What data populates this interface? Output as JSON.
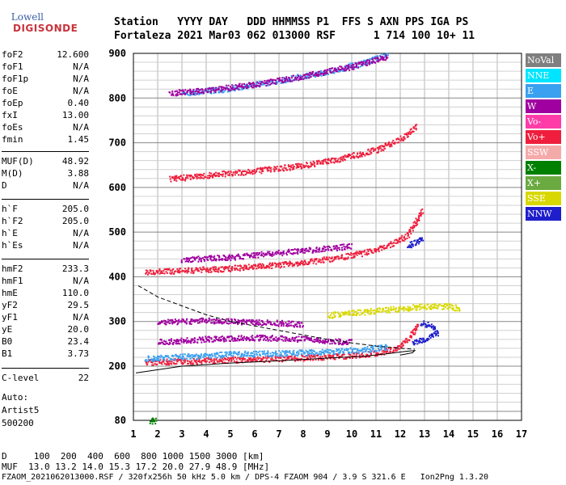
{
  "logo": {
    "line1": "Lowell",
    "line2": "DIGISONDE"
  },
  "header": {
    "line1": "Station   YYYY DAY   DDD HHMMSS P1  FFS S AXN PPS IGA PS",
    "line2": "Fortaleza 2021 Mar03 062 013000 RSF      1 714 100 10+ 11"
  },
  "params": [
    {
      "label": "foF2",
      "value": "12.600"
    },
    {
      "label": "foF1",
      "value": "N/A"
    },
    {
      "label": "foF1p",
      "value": "N/A"
    },
    {
      "label": "foE",
      "value": "N/A"
    },
    {
      "label": "foEp",
      "value": "0.40"
    },
    {
      "label": "fxI",
      "value": "13.00"
    },
    {
      "label": "foEs",
      "value": "N/A"
    },
    {
      "label": "fmin",
      "value": "1.45"
    },
    {
      "label": "MUF(D)",
      "value": "48.92"
    },
    {
      "label": "M(D)",
      "value": "3.88"
    },
    {
      "label": "D",
      "value": "N/A"
    },
    {
      "label": "h`F",
      "value": "205.0"
    },
    {
      "label": "h`F2",
      "value": "205.0"
    },
    {
      "label": "h`E",
      "value": "N/A"
    },
    {
      "label": "h`Es",
      "value": "N/A"
    },
    {
      "label": "hmF2",
      "value": "233.3"
    },
    {
      "label": "hmF1",
      "value": "N/A"
    },
    {
      "label": "hmE",
      "value": "110.0"
    },
    {
      "label": "yF2",
      "value": "29.5"
    },
    {
      "label": "yF1",
      "value": "N/A"
    },
    {
      "label": "yE",
      "value": "20.0"
    },
    {
      "label": "B0",
      "value": "23.4"
    },
    {
      "label": "B1",
      "value": "3.73"
    },
    {
      "label": "C-level",
      "value": "22"
    }
  ],
  "auto": {
    "line1": "Auto:",
    "line2": "Artist5",
    "line3": "500200"
  },
  "legend": [
    {
      "label": "NoVal",
      "color": "#7f7f7f"
    },
    {
      "label": "NNE",
      "color": "#00e5ff"
    },
    {
      "label": "E",
      "color": "#3aa0f0"
    },
    {
      "label": "W",
      "color": "#a000a0"
    },
    {
      "label": "Vo-",
      "color": "#ff3ca8"
    },
    {
      "label": "Vo+",
      "color": "#ee1e3c"
    },
    {
      "label": "SSW",
      "color": "#f5aaaa"
    },
    {
      "label": "X-",
      "color": "#008000"
    },
    {
      "label": "X+",
      "color": "#6aaa40"
    },
    {
      "label": "SSE",
      "color": "#d8d800"
    },
    {
      "label": "NNW",
      "color": "#1e1ecc"
    }
  ],
  "footer": {
    "line1": "D     100  200  400  600  800 1000 1500 3000 [km]",
    "line2": "MUF  13.0 13.2 14.0 15.3 17.2 20.0 27.9 48.9 [MHz]",
    "line3": "FZAOM_2021062013000.RSF / 320fx256h 50 kHz 5.0 km / DPS-4 FZAOM 904 / 3.9 S 321.6 E   Ion2Png 1.3.20"
  },
  "chart_data": {
    "type": "scatter",
    "xlim": [
      1,
      17
    ],
    "ylim": [
      80,
      900
    ],
    "xticks": [
      1,
      2,
      3,
      4,
      5,
      6,
      7,
      8,
      9,
      10,
      11,
      12,
      13,
      14,
      15,
      16,
      17
    ],
    "yticks": [
      80,
      200,
      300,
      400,
      500,
      600,
      700,
      800,
      900
    ],
    "grid": true,
    "traces": [
      {
        "color": "#ee1e3c",
        "points": [
          [
            1.5,
            210
          ],
          [
            3,
            212
          ],
          [
            5,
            215
          ],
          [
            7,
            218
          ],
          [
            9,
            222
          ],
          [
            10,
            225
          ],
          [
            11,
            230
          ],
          [
            11.8,
            240
          ],
          [
            12.2,
            255
          ],
          [
            12.5,
            275
          ],
          [
            12.7,
            295
          ]
        ]
      },
      {
        "color": "#3aa0f0",
        "points": [
          [
            1.5,
            218
          ],
          [
            3,
            222
          ],
          [
            5,
            228
          ],
          [
            7,
            230
          ],
          [
            9,
            233
          ],
          [
            10.5,
            238
          ],
          [
            11.5,
            245
          ]
        ]
      },
      {
        "color": "#a000a0",
        "points": [
          [
            2,
            255
          ],
          [
            4,
            262
          ],
          [
            6,
            265
          ],
          [
            8,
            262
          ],
          [
            9,
            258
          ],
          [
            10,
            255
          ]
        ]
      },
      {
        "color": "#a000a0",
        "points": [
          [
            2,
            300
          ],
          [
            4,
            303
          ],
          [
            6,
            300
          ],
          [
            8,
            295
          ]
        ]
      },
      {
        "color": "#d8d800",
        "points": [
          [
            9,
            315
          ],
          [
            10,
            320
          ],
          [
            11,
            325
          ],
          [
            12,
            330
          ],
          [
            13,
            335
          ],
          [
            14,
            335
          ],
          [
            14.5,
            330
          ]
        ]
      },
      {
        "color": "#ee1e3c",
        "points": [
          [
            1.5,
            412
          ],
          [
            3,
            415
          ],
          [
            5,
            420
          ],
          [
            7,
            428
          ],
          [
            9,
            440
          ],
          [
            10.5,
            455
          ],
          [
            11.5,
            470
          ],
          [
            12.3,
            495
          ],
          [
            12.7,
            530
          ],
          [
            12.9,
            550
          ]
        ]
      },
      {
        "color": "#a000a0",
        "points": [
          [
            3,
            440
          ],
          [
            5,
            445
          ],
          [
            7,
            455
          ],
          [
            9,
            465
          ],
          [
            10,
            470
          ]
        ]
      },
      {
        "color": "#ee1e3c",
        "points": [
          [
            2.5,
            620
          ],
          [
            4,
            628
          ],
          [
            6,
            638
          ],
          [
            8,
            650
          ],
          [
            9.5,
            665
          ],
          [
            11,
            685
          ],
          [
            12,
            710
          ],
          [
            12.7,
            740
          ]
        ]
      },
      {
        "color": "#3aa0f0",
        "points": [
          [
            3,
            812
          ],
          [
            5,
            822
          ],
          [
            7,
            840
          ],
          [
            9,
            860
          ],
          [
            10.5,
            880
          ],
          [
            11.5,
            900
          ]
        ]
      },
      {
        "color": "#a000a0",
        "points": [
          [
            2.5,
            812
          ],
          [
            4,
            818
          ],
          [
            6,
            832
          ],
          [
            8,
            850
          ],
          [
            10,
            872
          ],
          [
            11.5,
            895
          ]
        ]
      },
      {
        "color": "#1e1ecc",
        "points": [
          [
            12.5,
            255
          ],
          [
            13,
            262
          ],
          [
            13.5,
            275
          ],
          [
            13.3,
            290
          ],
          [
            12.8,
            300
          ]
        ]
      },
      {
        "color": "#1e1ecc",
        "points": [
          [
            12.3,
            470
          ],
          [
            12.7,
            480
          ],
          [
            12.9,
            490
          ]
        ]
      },
      {
        "color": "#008000",
        "points": [
          [
            1.7,
            80
          ],
          [
            1.9,
            80
          ]
        ]
      }
    ],
    "profile_line": [
      [
        1.1,
        185
      ],
      [
        3,
        200
      ],
      [
        5,
        207
      ],
      [
        7,
        212
      ],
      [
        9,
        218
      ],
      [
        10.5,
        222
      ],
      [
        11.5,
        228
      ],
      [
        12.2,
        233
      ],
      [
        12.6,
        235
      ],
      [
        12.5,
        230
      ],
      [
        12,
        225
      ]
    ],
    "dashed_line": [
      [
        1.2,
        380
      ],
      [
        2,
        355
      ],
      [
        3,
        335
      ],
      [
        4,
        315
      ],
      [
        5,
        300
      ],
      [
        6,
        290
      ],
      [
        7,
        280
      ],
      [
        8,
        270
      ],
      [
        9,
        260
      ],
      [
        10,
        252
      ],
      [
        11,
        245
      ],
      [
        12,
        240
      ],
      [
        12.6,
        238
      ]
    ]
  }
}
